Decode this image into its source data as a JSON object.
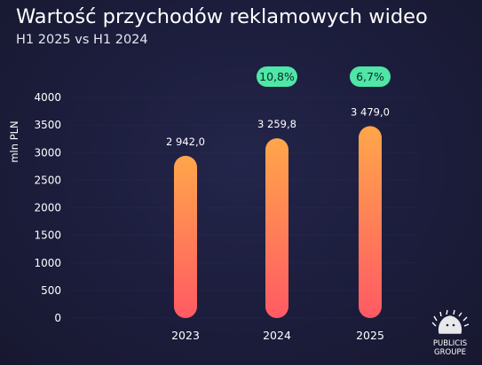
{
  "title": "Wartość przychodów reklamowych wideo",
  "subtitle": "H1 2025 vs H1 2024",
  "logo_text": [
    "PUBLICIS",
    "GROUPE"
  ],
  "colors": {
    "bar_top": "#ffa64a",
    "bar_bottom": "#ff5a64",
    "badge_fill": "#4fe6a8",
    "grid": "#3a3c5e"
  },
  "chart_data": {
    "type": "bar",
    "categories": [
      "2023",
      "2024",
      "2025"
    ],
    "values": [
      2942.0,
      3259.8,
      3479.0
    ],
    "data_labels": [
      "2 942,0",
      "3 259,8",
      "3 479,0"
    ],
    "growth_badges": [
      null,
      "10,8%",
      "6,7%"
    ],
    "ylabel": "mln PLN",
    "xlabel": "",
    "ylim": [
      0,
      4000
    ],
    "yticks": [
      0,
      500,
      1000,
      1500,
      2000,
      2500,
      3000,
      3500,
      4000
    ],
    "grid": true,
    "legend": false
  }
}
